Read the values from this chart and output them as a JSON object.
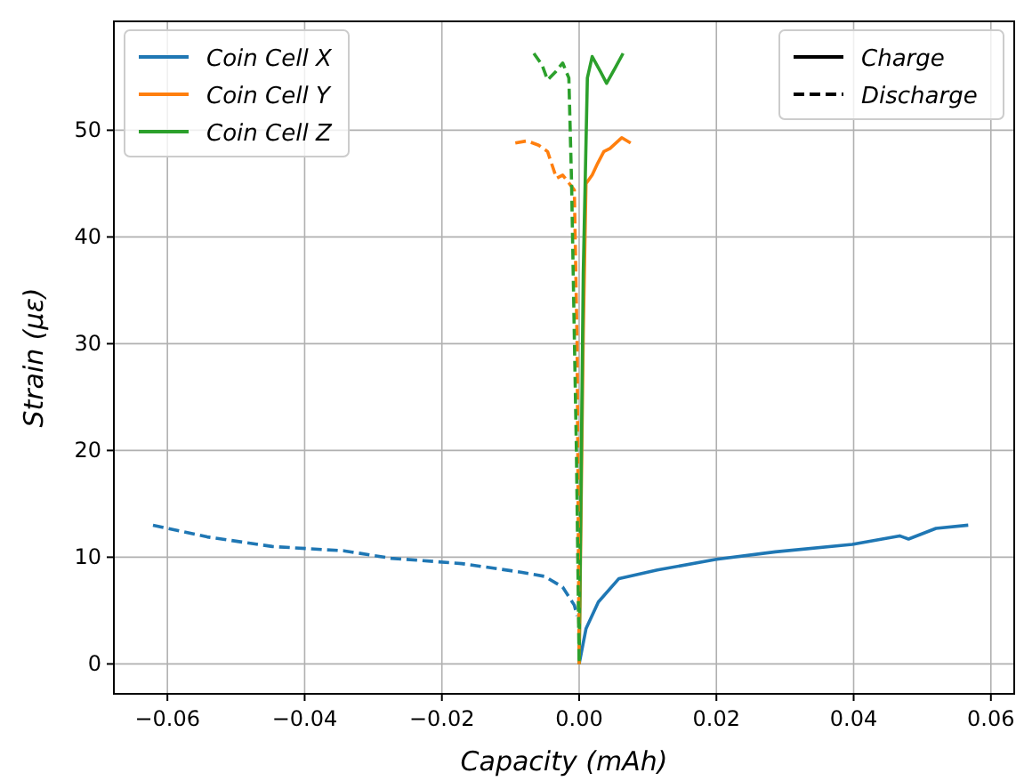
{
  "chart_data": {
    "type": "line",
    "xlabel": "Capacity (mAh)",
    "ylabel": "Strain (με)",
    "xlim": [
      -0.0678,
      0.0634
    ],
    "ylim": [
      -2.8,
      60.2
    ],
    "xticks": [
      {
        "value": -0.06,
        "label": "−0.06"
      },
      {
        "value": -0.04,
        "label": "−0.04"
      },
      {
        "value": -0.02,
        "label": "−0.02"
      },
      {
        "value": 0,
        "label": "0.00"
      },
      {
        "value": 0.02,
        "label": "0.02"
      },
      {
        "value": 0.04,
        "label": "0.04"
      },
      {
        "value": 0.06,
        "label": "0.06"
      }
    ],
    "yticks": [
      0,
      10,
      20,
      30,
      40,
      50
    ],
    "grid": true,
    "legend": "top left",
    "annotations": [
      "Charge",
      "Discharge"
    ],
    "series": [
      {
        "name": "Coin Cell X",
        "color": "#1f77b4",
        "line_style": "solid",
        "x": [
          0,
          0.001,
          0.0028,
          0.0058,
          0.0114,
          0.02,
          0.0286,
          0.0398,
          0.0467,
          0.048,
          0.052,
          0.0567
        ],
        "values": [
          0,
          3.3,
          5.8,
          8.0,
          8.8,
          9.8,
          10.5,
          11.2,
          12.0,
          11.7,
          12.7,
          13.0
        ]
      },
      {
        "name": "Coin Cell Y",
        "color": "#ff7f0e",
        "line_style": "solid",
        "x": [
          0,
          0.0006,
          0.001,
          0.0019,
          0.0027,
          0.0036,
          0.0045,
          0.0062,
          0.0075
        ],
        "values": [
          0,
          31,
          45,
          45.8,
          46.9,
          48,
          48.3,
          49.3,
          48.8
        ]
      },
      {
        "name": "Coin Cell Z",
        "color": "#2ca02c",
        "line_style": "solid",
        "x": [
          0,
          0.0006,
          0.0012,
          0.0019,
          0.0031,
          0.004,
          0.0053,
          0.0064
        ],
        "values": [
          0,
          36.6,
          54.9,
          56.9,
          55.5,
          54.4,
          55.9,
          57.2
        ]
      },
      {
        "color": "#1f77b4",
        "line_style": "dashed",
        "x": [
          -0.0621,
          -0.0542,
          -0.0447,
          -0.0343,
          -0.0274,
          -0.0171,
          -0.0085,
          -0.005,
          -0.0024,
          -0.0007,
          -0.0003
        ],
        "values": [
          13.0,
          11.9,
          11.0,
          10.6,
          9.9,
          9.4,
          8.6,
          8.2,
          7.2,
          5.5,
          4.5
        ]
      },
      {
        "color": "#ff7f0e",
        "line_style": "dashed",
        "x": [
          -0.0093,
          -0.0076,
          -0.0059,
          -0.0046,
          -0.0033,
          -0.0024,
          -0.0007,
          -0.0003,
          0
        ],
        "values": [
          48.8,
          49,
          48.6,
          48,
          45.5,
          45.8,
          44.4,
          30,
          0
        ]
      },
      {
        "color": "#2ca02c",
        "line_style": "dashed",
        "x": [
          -0.0066,
          -0.0054,
          -0.0046,
          -0.0034,
          -0.0024,
          -0.0015,
          -0.0011,
          -0.0004,
          0
        ],
        "values": [
          57.2,
          56.1,
          54.7,
          55.5,
          56.3,
          54.9,
          45,
          20,
          0
        ]
      }
    ]
  }
}
